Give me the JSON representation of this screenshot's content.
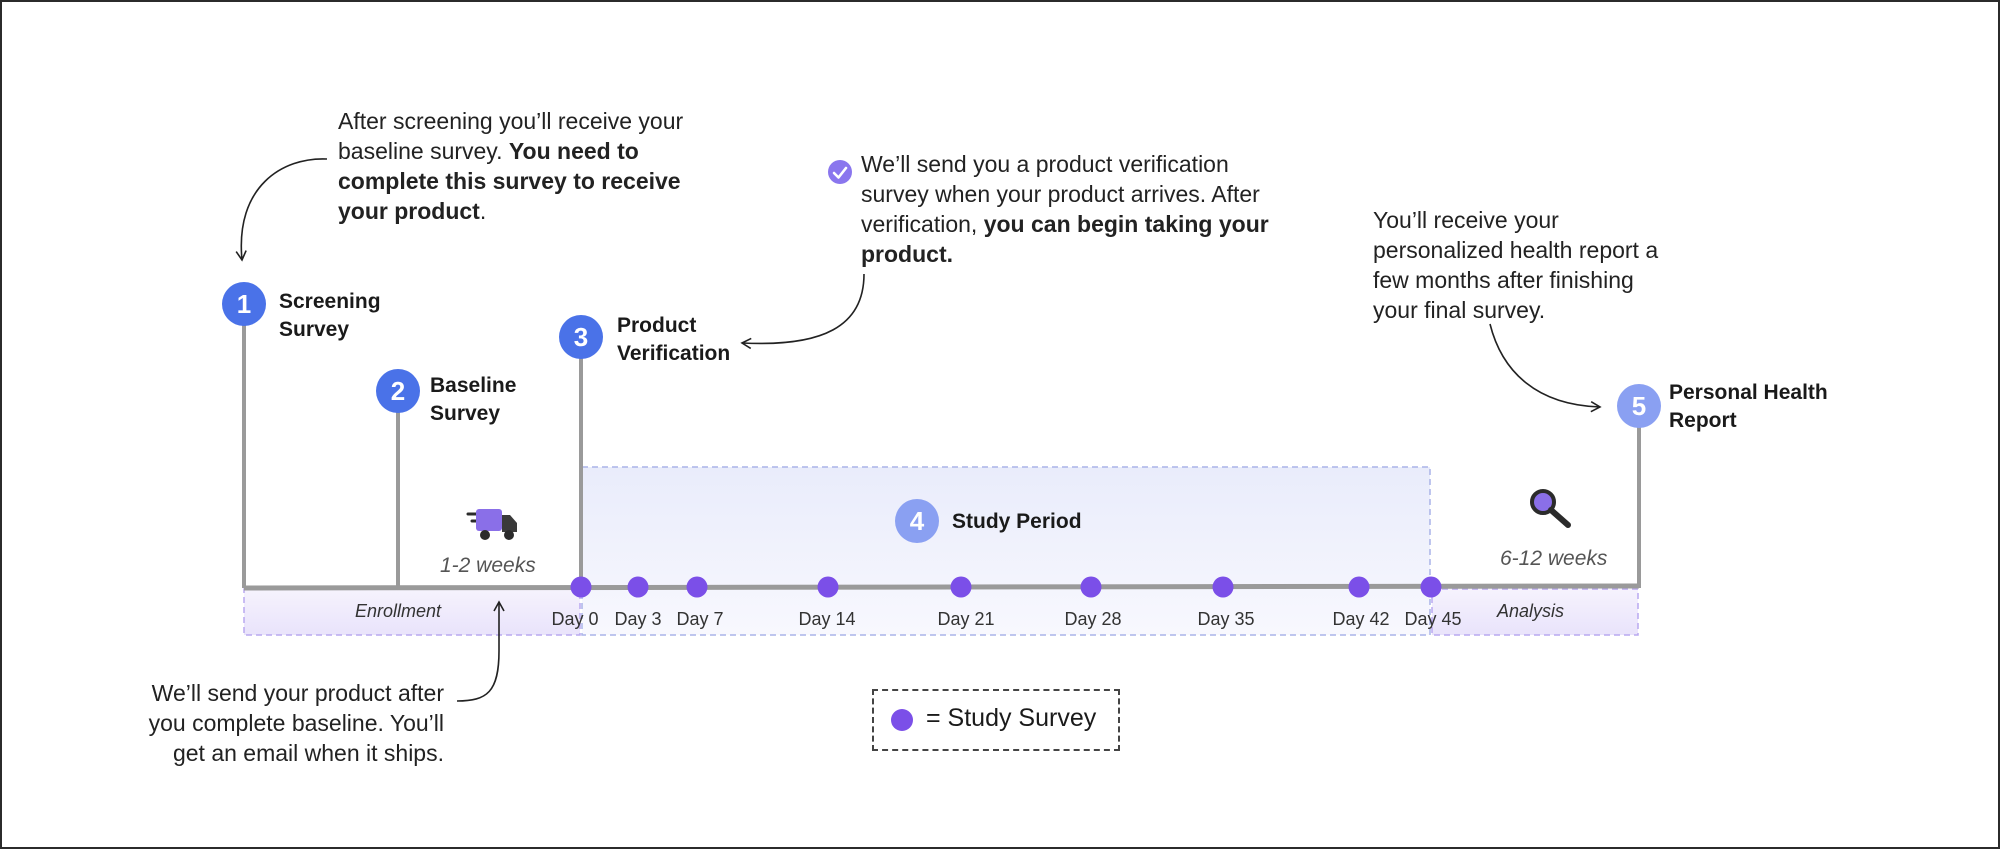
{
  "notes": {
    "baseline": {
      "text_a": "After screening you’ll receive your baseline survey. ",
      "bold": "You need to complete this survey to receive your product",
      "text_b": "."
    },
    "verification": {
      "text_a": "We’ll send you a product verification survey when your product arrives. After verification, ",
      "bold": "you can begin taking your product."
    },
    "report": "You’ll receive your personalized health report a few months after finishing your final survey.",
    "shipping": "We’ll send your product after you complete baseline. You’ll get an email when it ships."
  },
  "steps": [
    {
      "number": "1",
      "line1": "Screening",
      "line2": "Survey"
    },
    {
      "number": "2",
      "line1": "Baseline",
      "line2": "Survey"
    },
    {
      "number": "3",
      "line1": "Product",
      "line2": "Verification"
    },
    {
      "number": "4",
      "line1": "Study Period",
      "line2": ""
    },
    {
      "number": "5",
      "line1": "Personal Health",
      "line2": "Report"
    }
  ],
  "durations": {
    "shipping": "1-2 weeks",
    "analysis": "6-12 weeks"
  },
  "phases": {
    "enrollment": "Enrollment",
    "analysis": "Analysis"
  },
  "timeline": {
    "days": [
      "Day 0",
      "Day 3",
      "Day 7",
      "Day 14",
      "Day 21",
      "Day 28",
      "Day 35",
      "Day 42",
      "Day 45"
    ]
  },
  "legend": {
    "label": "= Study Survey"
  },
  "icons": {
    "shipping": "delivery-truck-icon",
    "analysis": "magnifier-icon",
    "verification": "check-badge-icon"
  },
  "colors": {
    "primary_blue": "#4a72e8",
    "light_blue": "#8aa0f2",
    "survey_purple": "#7b4fe8",
    "timeline_gray": "#9a9a9a",
    "band_lavender": "#eceefb"
  }
}
